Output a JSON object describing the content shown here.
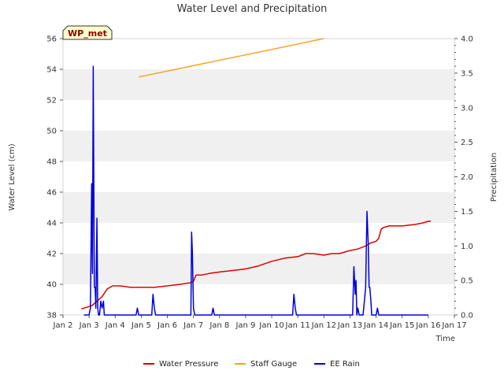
{
  "chart_data": {
    "type": "line",
    "title": "Water Level and Precipitation",
    "badge": "WP_met",
    "xlabel": "Time",
    "ylabel_left": "Water Level (cm)",
    "ylabel_right": "Precipitation",
    "x_ticks": [
      "Jan 2",
      "Jan 3",
      "Jan 4",
      "Jan 5",
      "Jan 6",
      "Jan 7",
      "Jan 8",
      "Jan 9",
      "Jan 10",
      "Jan 11",
      "Jan 12",
      "Jan 13",
      "Jan 14",
      "Jan 15",
      "Jan 16",
      "Jan 17"
    ],
    "x_range_days": [
      2,
      17
    ],
    "ylim_left": [
      38,
      56
    ],
    "yticks_left": [
      38,
      40,
      42,
      44,
      46,
      48,
      50,
      52,
      54,
      56
    ],
    "ylim_right": [
      0,
      4.0
    ],
    "yticks_right": [
      "0.0",
      "0.5",
      "1.0",
      "1.5",
      "2.0",
      "2.5",
      "3.0",
      "3.5",
      "4.0"
    ],
    "grid": "horizontal-bands",
    "legend_position": "bottom-center",
    "colors": {
      "water_pressure": "#dd0000",
      "staff_gauge": "#f5a623",
      "ee_rain": "#0000dd",
      "band": "#f0f0f0",
      "badge_bg": "#ffffcc"
    },
    "series": [
      {
        "name": "Water Pressure",
        "axis": "left",
        "x": [
          2.7,
          2.9,
          3.1,
          3.3,
          3.5,
          3.7,
          3.9,
          4.2,
          4.6,
          5.0,
          5.5,
          6.0,
          6.5,
          6.9,
          7.0,
          7.1,
          7.3,
          7.6,
          8.0,
          8.5,
          9.0,
          9.5,
          10.0,
          10.5,
          11.0,
          11.3,
          11.6,
          12.0,
          12.3,
          12.6,
          13.0,
          13.3,
          13.6,
          13.8,
          14.0,
          14.1,
          14.2,
          14.3,
          14.5,
          15.0,
          15.5,
          15.8,
          16.0,
          16.1
        ],
        "y": [
          38.4,
          38.5,
          38.6,
          38.9,
          39.2,
          39.7,
          39.9,
          39.9,
          39.8,
          39.8,
          39.8,
          39.9,
          40.0,
          40.1,
          40.2,
          40.6,
          40.6,
          40.7,
          40.8,
          40.9,
          41.0,
          41.2,
          41.5,
          41.7,
          41.8,
          42.0,
          42.0,
          41.9,
          42.0,
          42.0,
          42.2,
          42.3,
          42.5,
          42.7,
          42.8,
          43.0,
          43.6,
          43.7,
          43.8,
          43.8,
          43.9,
          44.0,
          44.1,
          44.1
        ]
      },
      {
        "name": "Staff Gauge",
        "axis": "left",
        "x": [
          4.9,
          12.0
        ],
        "y": [
          53.5,
          56.0
        ]
      },
      {
        "name": "EE Rain",
        "axis": "right",
        "x": [
          2.8,
          3.0,
          3.05,
          3.1,
          3.13,
          3.16,
          3.2,
          3.23,
          3.26,
          3.3,
          3.33,
          3.36,
          3.4,
          3.45,
          3.5,
          3.55,
          3.58,
          3.62,
          3.65,
          3.7,
          3.72,
          3.75,
          3.8,
          3.85,
          4.8,
          4.85,
          4.9,
          5.4,
          5.45,
          5.5,
          5.55,
          5.6,
          5.65,
          6.8,
          6.9,
          6.93,
          6.96,
          7.0,
          7.05,
          7.1,
          7.15,
          7.2,
          7.7,
          7.75,
          7.8,
          10.8,
          10.85,
          10.9,
          10.95,
          13.1,
          13.15,
          13.2,
          13.23,
          13.26,
          13.3,
          13.35,
          13.4,
          13.5,
          13.55,
          13.6,
          13.65,
          13.7,
          13.73,
          13.76,
          13.8,
          13.83,
          13.86,
          13.9,
          14.0,
          14.05,
          14.1,
          14.15,
          16.0
        ],
        "y": [
          0.0,
          0.0,
          0.1,
          1.9,
          0.6,
          3.6,
          0.4,
          0.4,
          0.1,
          1.4,
          0.1,
          0.0,
          0.0,
          0.2,
          0.1,
          0.2,
          0.0,
          0.0,
          0.0,
          0.0,
          0.0,
          0.0,
          0.0,
          0.0,
          0.0,
          0.1,
          0.0,
          0.0,
          0.3,
          0.1,
          0.0,
          0.0,
          0.0,
          0.0,
          0.0,
          1.2,
          0.9,
          0.1,
          0.0,
          0.0,
          0.0,
          0.0,
          0.0,
          0.1,
          0.0,
          0.0,
          0.3,
          0.1,
          0.0,
          0.0,
          0.7,
          0.3,
          0.5,
          0.0,
          0.1,
          0.0,
          0.0,
          0.0,
          0.2,
          0.4,
          1.5,
          1.0,
          0.4,
          0.4,
          0.2,
          0.0,
          0.0,
          0.0,
          0.0,
          0.1,
          0.0,
          0.0,
          0.0
        ]
      }
    ]
  }
}
